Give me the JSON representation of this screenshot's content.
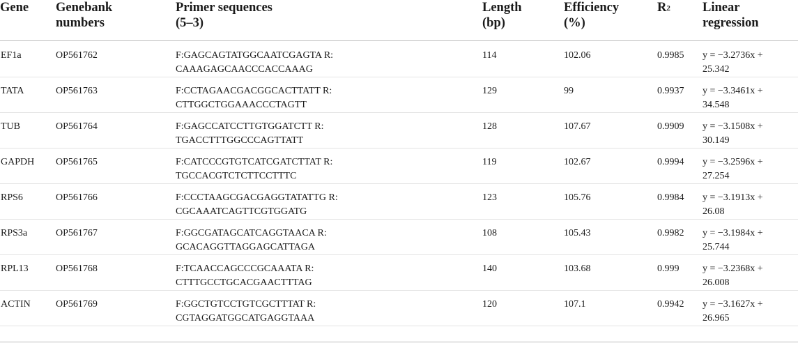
{
  "table": {
    "headers": {
      "gene": "Gene",
      "accession_line1": "Genebank",
      "accession_line2": "numbers",
      "primer_line1": "Primer sequences",
      "primer_line2": "(5–3)",
      "length_line1": "Length",
      "length_line2": "(bp)",
      "efficiency_line1": "Efficiency",
      "efficiency_line2": "(%)",
      "r2_base": "R",
      "r2_sup": "2",
      "linear_line1": "Linear",
      "linear_line2": "regression"
    },
    "rows": [
      {
        "gene": "EF1a",
        "accession": "OP561762",
        "primer_f": "F:GAGCAGTATGGCAATCGAGTA R:",
        "primer_r": "CAAAGAGCAACCCACCAAAG",
        "length": "114",
        "efficiency": "102.06",
        "r2": "0.9985",
        "linear_a": "y = −3.2736x +",
        "linear_b": "25.342"
      },
      {
        "gene": "TATA",
        "accession": "OP561763",
        "primer_f": "F:CCTAGAACGACGGCACTTATT R:",
        "primer_r": "CTTGGCTGGAAACCCTAGTT",
        "length": "129",
        "efficiency": "99",
        "r2": "0.9937",
        "linear_a": "y = −3.3461x +",
        "linear_b": "34.548"
      },
      {
        "gene": "TUB",
        "accession": "OP561764",
        "primer_f": "F:GAGCCATCCTTGTGGATCTT R:",
        "primer_r": "TGACCTTTGGCCCAGTTATT",
        "length": "128",
        "efficiency": "107.67",
        "r2": "0.9909",
        "linear_a": "y = −3.1508x +",
        "linear_b": "30.149"
      },
      {
        "gene": "GAPDH",
        "accession": "OP561765",
        "primer_f": "F:CATCCCGTGTCATCGATCTTAT R:",
        "primer_r": "TGCCACGTCTCTTCCTTTC",
        "length": "119",
        "efficiency": "102.67",
        "r2": "0.9994",
        "linear_a": "y = −3.2596x +",
        "linear_b": "27.254"
      },
      {
        "gene": "RPS6",
        "accession": "OP561766",
        "primer_f": "F:CCCTAAGCGACGAGGTATATTG R:",
        "primer_r": "CGCAAATCAGTTCGTGGATG",
        "length": "123",
        "efficiency": "105.76",
        "r2": "0.9984",
        "linear_a": "y = −3.1913x +",
        "linear_b": "26.08"
      },
      {
        "gene": "RPS3a",
        "accession": "OP561767",
        "primer_f": "F:GGCGATAGCATCAGGTAACA R:",
        "primer_r": "GCACAGGTTAGGAGCATTAGA",
        "length": "108",
        "efficiency": "105.43",
        "r2": "0.9982",
        "linear_a": "y = −3.1984x +",
        "linear_b": "25.744"
      },
      {
        "gene": "RPL13",
        "accession": "OP561768",
        "primer_f": "F:TCAACCAGCCCGCAAATA R:",
        "primer_r": "CTTTGCCTGCACGAACTTTAG",
        "length": "140",
        "efficiency": "103.68",
        "r2": "0.999",
        "linear_a": "y = −3.2368x +",
        "linear_b": "26.008"
      },
      {
        "gene": "ACTIN",
        "accession": "OP561769",
        "primer_f": "F:GGCTGTCCTGTCGCTTTAT R:",
        "primer_r": "CGTAGGATGGCATGAGGTAAA",
        "length": "120",
        "efficiency": "107.1",
        "r2": "0.9942",
        "linear_a": "y = −3.1627x +",
        "linear_b": "26.965"
      }
    ]
  }
}
